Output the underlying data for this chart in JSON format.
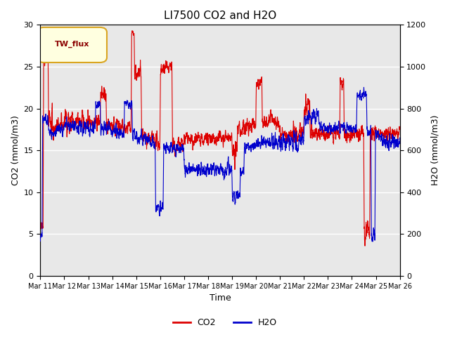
{
  "title": "LI7500 CO2 and H2O",
  "xlabel": "Time",
  "ylabel_left": "CO2 (mmol/m3)",
  "ylabel_right": "H2O (mmol/m3)",
  "ylim_left": [
    0,
    30
  ],
  "ylim_right": [
    0,
    1200
  ],
  "background_color": "#ffffff",
  "plot_bg_color": "#e8e8e8",
  "legend_label": "TW_flux",
  "co2_color": "#dd0000",
  "h2o_color": "#0000cc",
  "xtick_labels": [
    "Mar 11",
    "Mar 12",
    "Mar 13",
    "Mar 14",
    "Mar 15",
    "Mar 16",
    "Mar 17",
    "Mar 18",
    "Mar 19",
    "Mar 20",
    "Mar 21",
    "Mar 22",
    "Mar 23",
    "Mar 24",
    "Mar 25",
    "Mar 26"
  ],
  "n_points": 3600
}
